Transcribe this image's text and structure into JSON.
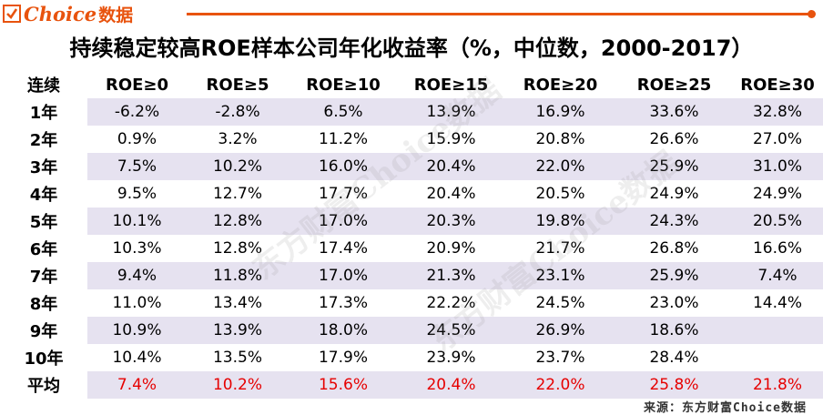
{
  "logo": {
    "brand": "Choice",
    "brand_cn": "数据"
  },
  "title": "持续稳定较高ROE样本公司年化收益率（%，中位数，2000-2017）",
  "table": {
    "columns": [
      "连续",
      "ROE≥0",
      "ROE≥5",
      "ROE≥10",
      "ROE≥15",
      "ROE≥20",
      "ROE≥25",
      "ROE≥30"
    ],
    "rows": [
      {
        "label": "1年",
        "values": [
          "-6.2%",
          "-2.8%",
          "6.5%",
          "13.9%",
          "16.9%",
          "33.6%",
          "32.8%"
        ]
      },
      {
        "label": "2年",
        "values": [
          "0.9%",
          "3.2%",
          "11.2%",
          "15.9%",
          "20.8%",
          "26.6%",
          "27.0%"
        ]
      },
      {
        "label": "3年",
        "values": [
          "7.5%",
          "10.2%",
          "16.0%",
          "20.4%",
          "22.0%",
          "25.9%",
          "31.0%"
        ]
      },
      {
        "label": "4年",
        "values": [
          "9.5%",
          "12.7%",
          "17.7%",
          "20.4%",
          "20.5%",
          "24.9%",
          "24.9%"
        ]
      },
      {
        "label": "5年",
        "values": [
          "10.1%",
          "12.8%",
          "17.0%",
          "20.3%",
          "19.8%",
          "24.3%",
          "20.5%"
        ]
      },
      {
        "label": "6年",
        "values": [
          "10.3%",
          "12.8%",
          "17.4%",
          "20.9%",
          "21.7%",
          "26.8%",
          "16.6%"
        ]
      },
      {
        "label": "7年",
        "values": [
          "9.4%",
          "11.8%",
          "17.0%",
          "21.3%",
          "23.1%",
          "25.9%",
          "7.4%"
        ]
      },
      {
        "label": "8年",
        "values": [
          "11.0%",
          "13.4%",
          "17.3%",
          "22.2%",
          "24.5%",
          "23.0%",
          "14.4%"
        ]
      },
      {
        "label": "9年",
        "values": [
          "10.9%",
          "13.9%",
          "18.0%",
          "24.5%",
          "26.9%",
          "18.6%",
          ""
        ]
      },
      {
        "label": "10年",
        "values": [
          "10.4%",
          "13.5%",
          "17.9%",
          "23.9%",
          "23.7%",
          "28.4%",
          ""
        ]
      },
      {
        "label": "平均",
        "values": [
          "7.4%",
          "10.2%",
          "15.6%",
          "20.4%",
          "22.0%",
          "25.8%",
          "21.8%"
        ],
        "highlight": true
      }
    ]
  },
  "watermark": {
    "text_1": "东方财富Choice数据",
    "text_2": "东方财富Choice数据"
  },
  "colors": {
    "accent": "#e8530e",
    "row_shade": "#e6e2f0",
    "average": "#e60000"
  },
  "source": "来源：东方财富Choice数据"
}
